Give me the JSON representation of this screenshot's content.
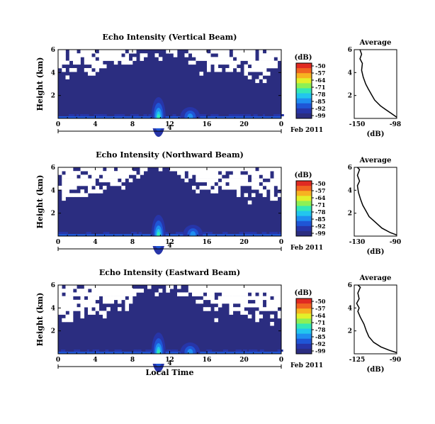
{
  "figure": {
    "date_label": "Feb 2011",
    "day_label": "4",
    "x_axis_label": "Local Time",
    "y_axis_label": "Height (km)",
    "colorbar_unit": "(dB)",
    "average_title": "Average",
    "average_xlabel": "(dB)"
  },
  "colormap": [
    "#2b2d80",
    "#2735a8",
    "#1f56d6",
    "#1f8ef0",
    "#22c6ee",
    "#34e8b6",
    "#8df055",
    "#e3f02a",
    "#f7b321",
    "#f06421",
    "#e02a22"
  ],
  "chart_data": [
    {
      "type": "heatmap",
      "title": "Echo Intensity (Vertical Beam)",
      "xlabel": "",
      "ylabel": "Height (km)",
      "xlim": [
        0,
        24
      ],
      "x_ticks": [
        "0",
        "4",
        "8",
        "12",
        "16",
        "20",
        "0"
      ],
      "ylim": [
        0,
        6
      ],
      "y_ticks": [
        "2",
        "4",
        "6"
      ],
      "colorbar": {
        "label": "(dB)",
        "ticks": [
          "-50",
          "-57",
          "-64",
          "-71",
          "-78",
          "-85",
          "-92",
          "-99"
        ],
        "range": [
          -99,
          -50
        ]
      },
      "peak_times_hours": [
        10.8,
        14.2
      ],
      "valid_top_km": [
        4.2,
        4.4,
        4.5,
        4.3,
        4.6,
        4.8,
        5.0,
        5.2,
        5.6,
        5.9,
        5.9,
        5.9,
        5.9,
        5.8,
        5.2,
        4.8,
        4.5,
        4.3,
        4.6,
        4.4,
        4.2,
        4.0,
        4.1,
        4.3
      ],
      "average": {
        "xlabel": "(dB)",
        "x_ticks": [
          "-150",
          "-98"
        ],
        "xlim": [
          -150,
          -98
        ],
        "ylim": [
          0,
          6
        ],
        "y_ticks": [
          "2",
          "4",
          "6"
        ],
        "profile": [
          [
            -98,
            0.1
          ],
          [
            -104,
            0.4
          ],
          [
            -112,
            0.8
          ],
          [
            -118,
            1.1
          ],
          [
            -125,
            1.6
          ],
          [
            -129,
            2.1
          ],
          [
            -133,
            2.6
          ],
          [
            -136,
            3.0
          ],
          [
            -139,
            3.6
          ],
          [
            -141,
            4.2
          ],
          [
            -140,
            4.8
          ],
          [
            -143,
            5.2
          ],
          [
            -141,
            5.6
          ],
          [
            -143,
            6.0
          ]
        ]
      }
    },
    {
      "type": "heatmap",
      "title": "Echo Intensity (Northward Beam)",
      "xlabel": "",
      "ylabel": "Height (km)",
      "xlim": [
        0,
        24
      ],
      "x_ticks": [
        "0",
        "4",
        "8",
        "12",
        "16",
        "20",
        "0"
      ],
      "ylim": [
        0,
        6
      ],
      "y_ticks": [
        "2",
        "4",
        "6"
      ],
      "colorbar": {
        "label": "(dB)",
        "ticks": [
          "-50",
          "-57",
          "-64",
          "-71",
          "-78",
          "-85",
          "-92",
          "-99"
        ],
        "range": [
          -99,
          -50
        ]
      },
      "peak_times_hours": [
        10.8,
        14.5
      ],
      "valid_top_km": [
        3.6,
        3.8,
        3.9,
        4.0,
        4.2,
        4.4,
        4.6,
        5.0,
        5.5,
        5.9,
        5.9,
        5.9,
        5.8,
        5.4,
        5.0,
        4.2,
        3.9,
        3.6,
        3.8,
        4.0,
        3.9,
        3.8,
        3.6,
        3.7
      ],
      "average": {
        "xlabel": "(dB)",
        "x_ticks": [
          "-130",
          "-90"
        ],
        "xlim": [
          -130,
          -90
        ],
        "ylim": [
          0,
          6
        ],
        "y_ticks": [
          "2",
          "4",
          "6"
        ],
        "profile": [
          [
            -90,
            0.1
          ],
          [
            -96,
            0.3
          ],
          [
            -104,
            0.7
          ],
          [
            -110,
            1.2
          ],
          [
            -116,
            1.7
          ],
          [
            -119,
            2.2
          ],
          [
            -122,
            2.7
          ],
          [
            -124,
            3.2
          ],
          [
            -126,
            3.8
          ],
          [
            -127,
            4.4
          ],
          [
            -125,
            4.8
          ],
          [
            -127,
            5.3
          ],
          [
            -125,
            5.8
          ],
          [
            -127,
            6.0
          ]
        ]
      }
    },
    {
      "type": "heatmap",
      "title": "Echo Intensity (Eastward Beam)",
      "xlabel": "Local Time",
      "ylabel": "Height (km)",
      "xlim": [
        0,
        24
      ],
      "x_ticks": [
        "0",
        "4",
        "8",
        "12",
        "16",
        "20",
        "0"
      ],
      "ylim": [
        0,
        6
      ],
      "y_ticks": [
        "2",
        "4",
        "6"
      ],
      "colorbar": {
        "label": "(dB)",
        "ticks": [
          "-50",
          "-57",
          "-64",
          "-71",
          "-78",
          "-85",
          "-92",
          "-99"
        ],
        "range": [
          -99,
          -50
        ]
      },
      "peak_times_hours": [
        10.8,
        14.2
      ],
      "valid_top_km": [
        3.4,
        3.5,
        3.6,
        3.8,
        4.0,
        4.1,
        4.3,
        4.8,
        5.5,
        5.9,
        5.9,
        5.9,
        5.8,
        5.6,
        5.0,
        4.6,
        4.2,
        3.9,
        3.8,
        3.9,
        3.6,
        3.7,
        3.5,
        3.6
      ],
      "average": {
        "xlabel": "(dB)",
        "x_ticks": [
          "-125",
          "-90"
        ],
        "xlim": [
          -125,
          -90
        ],
        "ylim": [
          0,
          6
        ],
        "y_ticks": [
          "2",
          "4",
          "6"
        ],
        "profile": [
          [
            -90,
            0.1
          ],
          [
            -96,
            0.3
          ],
          [
            -103,
            0.6
          ],
          [
            -109,
            1.0
          ],
          [
            -113,
            1.5
          ],
          [
            -115,
            2.0
          ],
          [
            -117,
            2.6
          ],
          [
            -120,
            3.2
          ],
          [
            -122,
            3.7
          ],
          [
            -121,
            4.0
          ],
          [
            -123,
            4.4
          ],
          [
            -121,
            4.8
          ],
          [
            -122,
            5.3
          ],
          [
            -120,
            5.8
          ],
          [
            -122,
            6.0
          ]
        ]
      }
    }
  ]
}
